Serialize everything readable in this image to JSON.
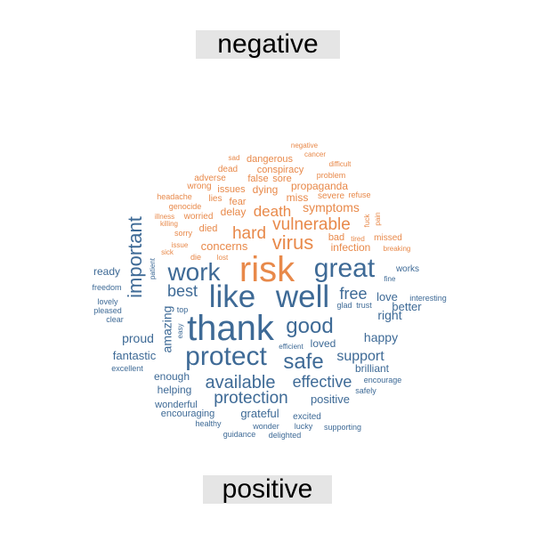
{
  "labels": {
    "top": "negative",
    "bottom": "positive"
  },
  "colors": {
    "negative": "#E8894A",
    "positive": "#3E6A96",
    "label_background": "#E5E5E5"
  },
  "words": [
    {
      "text": "risk",
      "sentiment": "negative"
    },
    {
      "text": "virus",
      "sentiment": "negative"
    },
    {
      "text": "vulnerable",
      "sentiment": "negative"
    },
    {
      "text": "hard",
      "sentiment": "negative"
    },
    {
      "text": "death",
      "sentiment": "negative"
    },
    {
      "text": "concerns",
      "sentiment": "negative"
    },
    {
      "text": "symptoms",
      "sentiment": "negative"
    },
    {
      "text": "propaganda",
      "sentiment": "negative"
    },
    {
      "text": "conspiracy",
      "sentiment": "negative"
    },
    {
      "text": "dangerous",
      "sentiment": "negative"
    },
    {
      "text": "dying",
      "sentiment": "negative"
    },
    {
      "text": "delay",
      "sentiment": "negative"
    },
    {
      "text": "miss",
      "sentiment": "negative"
    },
    {
      "text": "issues",
      "sentiment": "negative"
    },
    {
      "text": "fear",
      "sentiment": "negative"
    },
    {
      "text": "adverse",
      "sentiment": "negative"
    },
    {
      "text": "died",
      "sentiment": "negative"
    },
    {
      "text": "dead",
      "sentiment": "negative"
    },
    {
      "text": "worried",
      "sentiment": "negative"
    },
    {
      "text": "lies",
      "sentiment": "negative"
    },
    {
      "text": "severe",
      "sentiment": "negative"
    },
    {
      "text": "false",
      "sentiment": "negative"
    },
    {
      "text": "sore",
      "sentiment": "negative"
    },
    {
      "text": "bad",
      "sentiment": "negative"
    },
    {
      "text": "infection",
      "sentiment": "negative"
    },
    {
      "text": "missed",
      "sentiment": "negative"
    },
    {
      "text": "wrong",
      "sentiment": "negative"
    },
    {
      "text": "headache",
      "sentiment": "negative"
    },
    {
      "text": "genocide",
      "sentiment": "negative"
    },
    {
      "text": "problem",
      "sentiment": "negative"
    },
    {
      "text": "sorry",
      "sentiment": "negative"
    },
    {
      "text": "illness",
      "sentiment": "negative"
    },
    {
      "text": "killing",
      "sentiment": "negative"
    },
    {
      "text": "issue",
      "sentiment": "negative"
    },
    {
      "text": "sick",
      "sentiment": "negative"
    },
    {
      "text": "die",
      "sentiment": "negative"
    },
    {
      "text": "lost",
      "sentiment": "negative"
    },
    {
      "text": "sad",
      "sentiment": "negative"
    },
    {
      "text": "negative",
      "sentiment": "negative"
    },
    {
      "text": "cancer",
      "sentiment": "negative"
    },
    {
      "text": "difficult",
      "sentiment": "negative"
    },
    {
      "text": "refuse",
      "sentiment": "negative"
    },
    {
      "text": "fuck",
      "sentiment": "negative"
    },
    {
      "text": "pain",
      "sentiment": "negative"
    },
    {
      "text": "tired",
      "sentiment": "negative"
    },
    {
      "text": "breaking",
      "sentiment": "negative"
    },
    {
      "text": "like",
      "sentiment": "positive"
    },
    {
      "text": "well",
      "sentiment": "positive"
    },
    {
      "text": "thank",
      "sentiment": "positive"
    },
    {
      "text": "great",
      "sentiment": "positive"
    },
    {
      "text": "protect",
      "sentiment": "positive"
    },
    {
      "text": "work",
      "sentiment": "positive"
    },
    {
      "text": "important",
      "sentiment": "positive"
    },
    {
      "text": "good",
      "sentiment": "positive"
    },
    {
      "text": "safe",
      "sentiment": "positive"
    },
    {
      "text": "available",
      "sentiment": "positive"
    },
    {
      "text": "protection",
      "sentiment": "positive"
    },
    {
      "text": "best",
      "sentiment": "positive"
    },
    {
      "text": "free",
      "sentiment": "positive"
    },
    {
      "text": "effective",
      "sentiment": "positive"
    },
    {
      "text": "support",
      "sentiment": "positive"
    },
    {
      "text": "right",
      "sentiment": "positive"
    },
    {
      "text": "happy",
      "sentiment": "positive"
    },
    {
      "text": "amazing",
      "sentiment": "positive"
    },
    {
      "text": "proud",
      "sentiment": "positive"
    },
    {
      "text": "love",
      "sentiment": "positive"
    },
    {
      "text": "positive",
      "sentiment": "positive"
    },
    {
      "text": "grateful",
      "sentiment": "positive"
    },
    {
      "text": "fantastic",
      "sentiment": "positive"
    },
    {
      "text": "better",
      "sentiment": "positive"
    },
    {
      "text": "brilliant",
      "sentiment": "positive"
    },
    {
      "text": "loved",
      "sentiment": "positive"
    },
    {
      "text": "enough",
      "sentiment": "positive"
    },
    {
      "text": "helping",
      "sentiment": "positive"
    },
    {
      "text": "wonderful",
      "sentiment": "positive"
    },
    {
      "text": "encouraging",
      "sentiment": "positive"
    },
    {
      "text": "ready",
      "sentiment": "positive"
    },
    {
      "text": "works",
      "sentiment": "positive"
    },
    {
      "text": "interesting",
      "sentiment": "positive"
    },
    {
      "text": "encourage",
      "sentiment": "positive"
    },
    {
      "text": "safely",
      "sentiment": "positive"
    },
    {
      "text": "excited",
      "sentiment": "positive"
    },
    {
      "text": "lucky",
      "sentiment": "positive"
    },
    {
      "text": "supporting",
      "sentiment": "positive"
    },
    {
      "text": "delighted",
      "sentiment": "positive"
    },
    {
      "text": "wonder",
      "sentiment": "positive"
    },
    {
      "text": "guidance",
      "sentiment": "positive"
    },
    {
      "text": "healthy",
      "sentiment": "positive"
    },
    {
      "text": "freedom",
      "sentiment": "positive"
    },
    {
      "text": "lovely",
      "sentiment": "positive"
    },
    {
      "text": "pleased",
      "sentiment": "positive"
    },
    {
      "text": "clear",
      "sentiment": "positive"
    },
    {
      "text": "excellent",
      "sentiment": "positive"
    },
    {
      "text": "patient",
      "sentiment": "positive"
    },
    {
      "text": "top",
      "sentiment": "positive"
    },
    {
      "text": "easy",
      "sentiment": "positive"
    },
    {
      "text": "efficient",
      "sentiment": "positive"
    },
    {
      "text": "glad",
      "sentiment": "positive"
    },
    {
      "text": "trust",
      "sentiment": "positive"
    },
    {
      "text": "fine",
      "sentiment": "positive"
    }
  ]
}
